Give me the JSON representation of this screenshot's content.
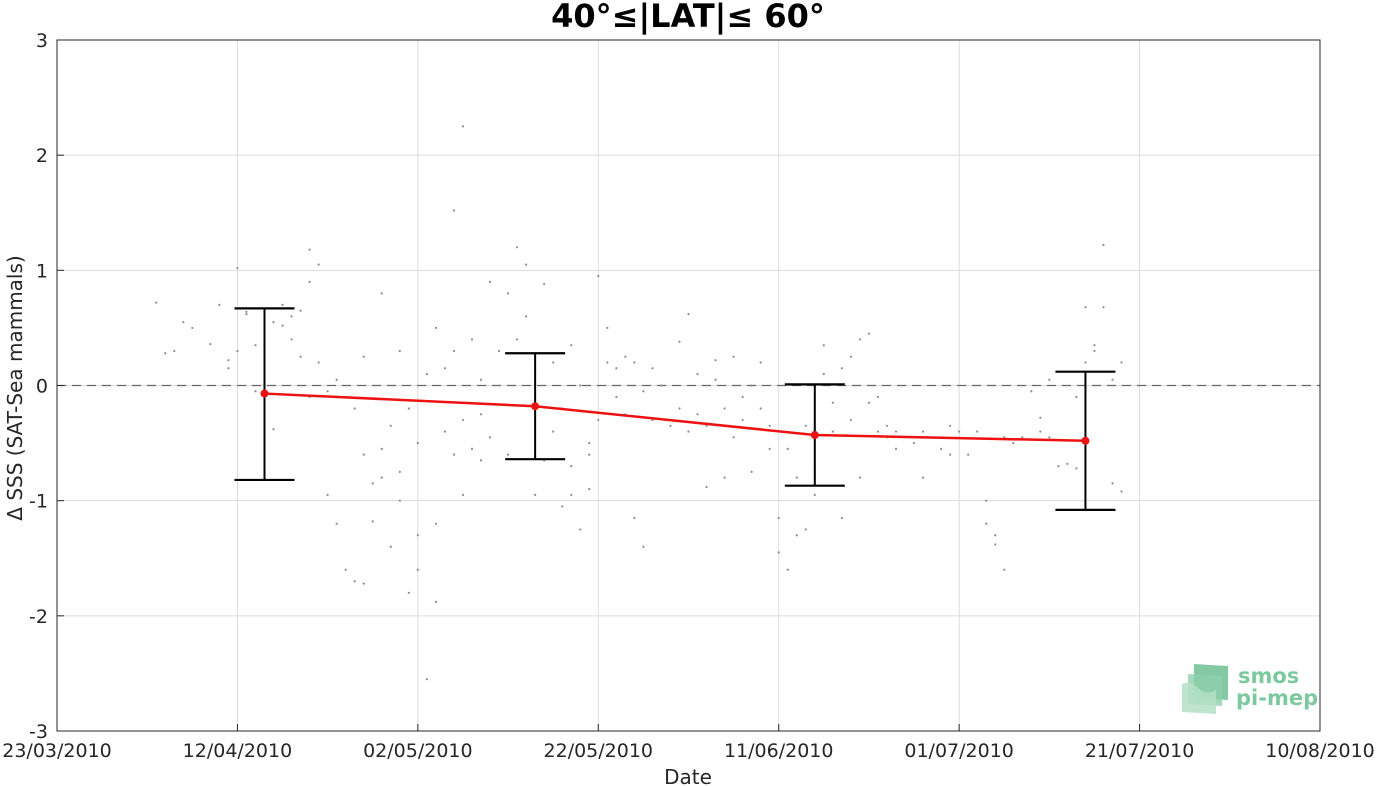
{
  "chart_data": {
    "type": "line",
    "title": "40°≤|LAT|≤ 60°",
    "xlabel": "Date",
    "ylabel": "Δ SSS (SAT-Sea mammals)",
    "x_ticks": [
      "23/03/2010",
      "12/04/2010",
      "02/05/2010",
      "22/05/2010",
      "11/06/2010",
      "01/07/2010",
      "21/07/2010",
      "10/08/2010"
    ],
    "x_range": [
      "2010-03-23",
      "2010-08-10"
    ],
    "y_ticks": [
      "3",
      "2",
      "1",
      "0",
      "-1",
      "-2",
      "-3"
    ],
    "ylim": [
      -3,
      3
    ],
    "grid": true,
    "reference_line": {
      "y": 0,
      "style": "dashed",
      "color": "#666666"
    },
    "mean_series": {
      "color": "#ee1111",
      "points": [
        {
          "x": "2010-04-15",
          "y": -0.07,
          "err_low": -0.82,
          "err_high": 0.67
        },
        {
          "x": "2010-05-15",
          "y": -0.18,
          "err_low": -0.64,
          "err_high": 0.28
        },
        {
          "x": "2010-06-15",
          "y": -0.43,
          "err_low": -0.87,
          "err_high": 0.01
        },
        {
          "x": "2010-07-15",
          "y": -0.48,
          "err_low": -1.08,
          "err_high": 0.12
        }
      ]
    },
    "scatter_series": {
      "color": "#8c8c8c",
      "points": [
        [
          "2010-04-03",
          0.72
        ],
        [
          "2010-04-04",
          0.28
        ],
        [
          "2010-04-05",
          0.3
        ],
        [
          "2010-04-06",
          0.55
        ],
        [
          "2010-04-07",
          0.5
        ],
        [
          "2010-04-09",
          0.36
        ],
        [
          "2010-04-10",
          0.7
        ],
        [
          "2010-04-11",
          0.15
        ],
        [
          "2010-04-11",
          0.22
        ],
        [
          "2010-04-12",
          0.3
        ],
        [
          "2010-04-12",
          1.02
        ],
        [
          "2010-04-13",
          0.62
        ],
        [
          "2010-04-13",
          0.64
        ],
        [
          "2010-04-14",
          -0.05
        ],
        [
          "2010-04-14",
          0.35
        ],
        [
          "2010-04-15",
          -0.25
        ],
        [
          "2010-04-15",
          0.2
        ],
        [
          "2010-04-16",
          -0.38
        ],
        [
          "2010-04-16",
          0.55
        ],
        [
          "2010-04-17",
          0.52
        ],
        [
          "2010-04-18",
          0.4
        ],
        [
          "2010-04-18",
          0.6
        ],
        [
          "2010-04-19",
          0.65
        ],
        [
          "2010-04-19",
          0.25
        ],
        [
          "2010-04-20",
          0.9
        ],
        [
          "2010-04-20",
          1.18
        ],
        [
          "2010-04-20",
          -0.1
        ],
        [
          "2010-04-21",
          1.05
        ],
        [
          "2010-04-21",
          0.2
        ],
        [
          "2010-04-22",
          -0.05
        ],
        [
          "2010-04-22",
          -0.95
        ],
        [
          "2010-04-23",
          -1.2
        ],
        [
          "2010-04-23",
          0.05
        ],
        [
          "2010-04-24",
          -0.1
        ],
        [
          "2010-04-24",
          -1.6
        ],
        [
          "2010-04-25",
          -1.7
        ],
        [
          "2010-04-25",
          -0.2
        ],
        [
          "2010-04-26",
          -1.72
        ],
        [
          "2010-04-26",
          0.25
        ],
        [
          "2010-04-27",
          -0.85
        ],
        [
          "2010-04-27",
          -1.18
        ],
        [
          "2010-04-28",
          0.8
        ],
        [
          "2010-04-28",
          -0.55
        ],
        [
          "2010-04-29",
          -1.4
        ],
        [
          "2010-04-29",
          -0.35
        ],
        [
          "2010-04-30",
          0.3
        ],
        [
          "2010-04-30",
          -0.75
        ],
        [
          "2010-05-01",
          -0.2
        ],
        [
          "2010-05-01",
          -1.8
        ],
        [
          "2010-05-02",
          -1.3
        ],
        [
          "2010-05-02",
          -1.6
        ],
        [
          "2010-05-02",
          -0.5
        ],
        [
          "2010-05-03",
          -2.55
        ],
        [
          "2010-05-03",
          0.1
        ],
        [
          "2010-05-04",
          -1.88
        ],
        [
          "2010-05-04",
          0.5
        ],
        [
          "2010-05-04",
          -1.2
        ],
        [
          "2010-05-05",
          -0.4
        ],
        [
          "2010-05-05",
          0.15
        ],
        [
          "2010-05-06",
          1.52
        ],
        [
          "2010-05-06",
          0.3
        ],
        [
          "2010-05-06",
          -0.6
        ],
        [
          "2010-05-07",
          2.25
        ],
        [
          "2010-05-07",
          -0.3
        ],
        [
          "2010-05-08",
          0.4
        ],
        [
          "2010-05-08",
          -0.55
        ],
        [
          "2010-05-09",
          0.05
        ],
        [
          "2010-05-09",
          -0.25
        ],
        [
          "2010-05-10",
          0.9
        ],
        [
          "2010-05-10",
          -0.45
        ],
        [
          "2010-05-11",
          0.3
        ],
        [
          "2010-05-11",
          0.0
        ],
        [
          "2010-05-12",
          0.8
        ],
        [
          "2010-05-12",
          -0.6
        ],
        [
          "2010-05-13",
          1.2
        ],
        [
          "2010-05-13",
          0.4
        ],
        [
          "2010-05-14",
          1.05
        ],
        [
          "2010-05-14",
          0.6
        ],
        [
          "2010-05-15",
          -0.95
        ],
        [
          "2010-05-15",
          0.1
        ],
        [
          "2010-05-16",
          0.88
        ],
        [
          "2010-05-16",
          -0.65
        ],
        [
          "2010-05-17",
          0.2
        ],
        [
          "2010-05-17",
          -0.4
        ],
        [
          "2010-05-18",
          -1.05
        ],
        [
          "2010-05-18",
          -0.2
        ],
        [
          "2010-05-19",
          0.35
        ],
        [
          "2010-05-19",
          -0.7
        ],
        [
          "2010-05-20",
          -1.25
        ],
        [
          "2010-05-20",
          0.0
        ],
        [
          "2010-05-21",
          -0.9
        ],
        [
          "2010-05-21",
          -0.5
        ],
        [
          "2010-05-22",
          0.95
        ],
        [
          "2010-05-22",
          -0.3
        ],
        [
          "2010-05-23",
          0.5
        ],
        [
          "2010-05-23",
          0.2
        ],
        [
          "2010-05-24",
          0.15
        ],
        [
          "2010-05-24",
          -0.1
        ],
        [
          "2010-05-25",
          0.25
        ],
        [
          "2010-05-25",
          -0.25
        ],
        [
          "2010-05-26",
          -1.15
        ],
        [
          "2010-05-26",
          0.2
        ],
        [
          "2010-05-27",
          -1.4
        ],
        [
          "2010-05-27",
          -0.05
        ],
        [
          "2010-05-28",
          0.15
        ],
        [
          "2010-05-28",
          -0.3
        ],
        [
          "2010-05-29",
          0.0
        ],
        [
          "2010-05-30",
          -0.35
        ],
        [
          "2010-05-31",
          0.38
        ],
        [
          "2010-05-31",
          -0.2
        ],
        [
          "2010-06-01",
          0.62
        ],
        [
          "2010-06-01",
          -0.4
        ],
        [
          "2010-06-02",
          0.1
        ],
        [
          "2010-06-03",
          -0.88
        ],
        [
          "2010-06-03",
          -0.35
        ],
        [
          "2010-06-04",
          0.22
        ],
        [
          "2010-06-04",
          0.05
        ],
        [
          "2010-06-05",
          -0.2
        ],
        [
          "2010-06-06",
          0.25
        ],
        [
          "2010-06-06",
          -0.45
        ],
        [
          "2010-06-07",
          -0.3
        ],
        [
          "2010-06-07",
          -0.1
        ],
        [
          "2010-06-08",
          0.0
        ],
        [
          "2010-06-08",
          -0.75
        ],
        [
          "2010-06-09",
          -0.2
        ],
        [
          "2010-06-09",
          0.2
        ],
        [
          "2010-06-10",
          -0.35
        ],
        [
          "2010-06-10",
          -0.55
        ],
        [
          "2010-06-11",
          -1.45
        ],
        [
          "2010-06-11",
          -1.15
        ],
        [
          "2010-06-12",
          -0.55
        ],
        [
          "2010-06-12",
          -1.6
        ],
        [
          "2010-06-13",
          -1.3
        ],
        [
          "2010-06-13",
          -0.8
        ],
        [
          "2010-06-14",
          -1.25
        ],
        [
          "2010-06-14",
          -0.35
        ],
        [
          "2010-06-15",
          -0.75
        ],
        [
          "2010-06-15",
          -0.95
        ],
        [
          "2010-06-16",
          0.35
        ],
        [
          "2010-06-16",
          0.1
        ],
        [
          "2010-06-17",
          -0.15
        ],
        [
          "2010-06-17",
          -0.4
        ],
        [
          "2010-06-18",
          0.15
        ],
        [
          "2010-06-18",
          -1.15
        ],
        [
          "2010-06-19",
          0.25
        ],
        [
          "2010-06-19",
          -0.3
        ],
        [
          "2010-06-20",
          0.4
        ],
        [
          "2010-06-20",
          -0.8
        ],
        [
          "2010-06-21",
          -0.15
        ],
        [
          "2010-06-21",
          0.45
        ],
        [
          "2010-06-22",
          -0.4
        ],
        [
          "2010-06-22",
          -0.1
        ],
        [
          "2010-06-23",
          -0.45
        ],
        [
          "2010-06-23",
          -0.35
        ],
        [
          "2010-06-24",
          -0.4
        ],
        [
          "2010-06-25",
          -0.45
        ],
        [
          "2010-06-26",
          -0.5
        ],
        [
          "2010-06-27",
          -0.8
        ],
        [
          "2010-06-27",
          -0.4
        ],
        [
          "2010-06-28",
          -0.45
        ],
        [
          "2010-06-29",
          -0.55
        ],
        [
          "2010-06-30",
          -0.35
        ],
        [
          "2010-06-30",
          -0.6
        ],
        [
          "2010-07-01",
          -0.4
        ],
        [
          "2010-07-02",
          -0.6
        ],
        [
          "2010-07-03",
          -0.4
        ],
        [
          "2010-07-04",
          -1.0
        ],
        [
          "2010-07-04",
          -1.2
        ],
        [
          "2010-07-05",
          -1.3
        ],
        [
          "2010-07-05",
          -1.38
        ],
        [
          "2010-07-06",
          -1.6
        ],
        [
          "2010-07-06",
          -0.45
        ],
        [
          "2010-07-07",
          -0.5
        ],
        [
          "2010-07-08",
          -0.45
        ],
        [
          "2010-07-09",
          -0.05
        ],
        [
          "2010-07-10",
          -0.4
        ],
        [
          "2010-07-10",
          -0.28
        ],
        [
          "2010-07-11",
          0.05
        ],
        [
          "2010-07-11",
          -0.45
        ],
        [
          "2010-07-12",
          -0.7
        ],
        [
          "2010-07-13",
          -0.68
        ],
        [
          "2010-07-14",
          -0.72
        ],
        [
          "2010-07-14",
          -0.1
        ],
        [
          "2010-07-15",
          0.68
        ],
        [
          "2010-07-15",
          0.2
        ],
        [
          "2010-07-16",
          0.3
        ],
        [
          "2010-07-16",
          0.35
        ],
        [
          "2010-07-17",
          0.68
        ],
        [
          "2010-07-17",
          1.22
        ],
        [
          "2010-07-18",
          0.05
        ],
        [
          "2010-07-18",
          -0.85
        ],
        [
          "2010-07-19",
          -0.92
        ],
        [
          "2010-07-19",
          0.2
        ],
        [
          "2010-05-07",
          -0.95
        ],
        [
          "2010-05-09",
          -0.65
        ],
        [
          "2010-04-26",
          -0.6
        ],
        [
          "2010-04-28",
          -0.8
        ],
        [
          "2010-04-30",
          -1.0
        ],
        [
          "2010-05-19",
          -0.95
        ],
        [
          "2010-05-21",
          -0.6
        ],
        [
          "2010-06-02",
          -0.25
        ],
        [
          "2010-06-05",
          -0.8
        ],
        [
          "2010-06-24",
          -0.55
        ],
        [
          "2010-04-17",
          0.7
        ]
      ]
    }
  },
  "logo": {
    "line1": "smos",
    "line2": "pi-mep"
  }
}
